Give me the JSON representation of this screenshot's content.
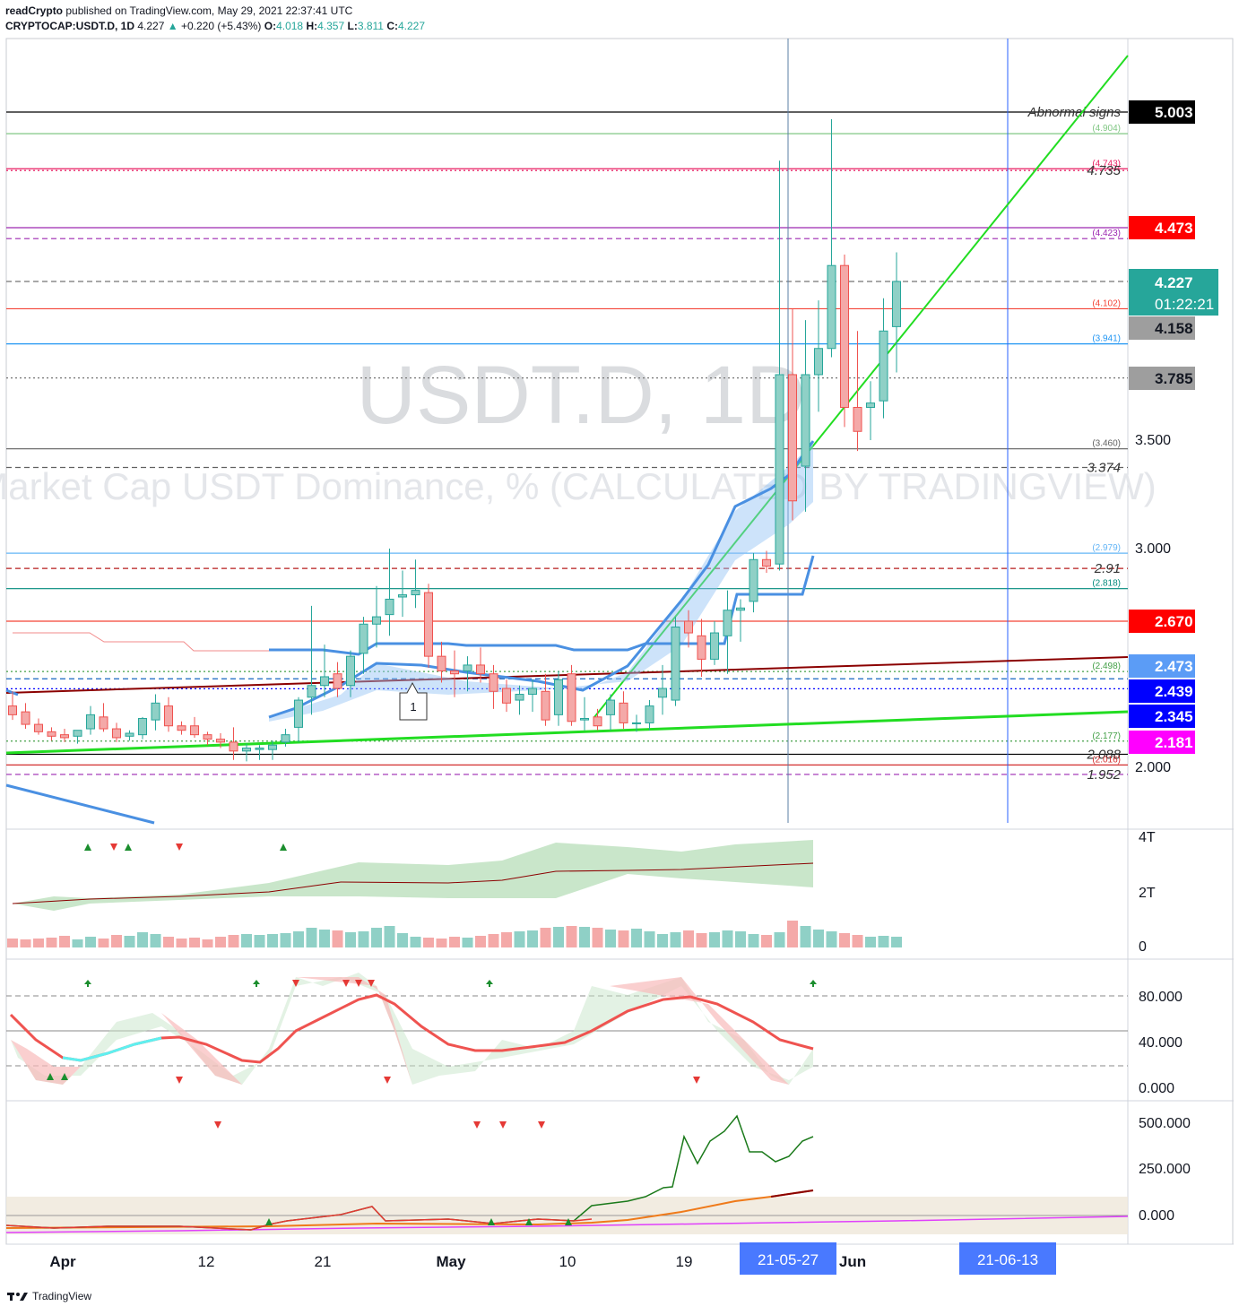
{
  "header": {
    "publisher": "readCrypto",
    "published_text": "published on TradingView.com, May 29, 2021 22:37:41 UTC",
    "symbol": "CRYPTOCAP:USDT.D, 1D",
    "last": "4.227",
    "change_arrow": "▲",
    "change": "+0.220 (+5.43%)",
    "o_label": "O:",
    "o": "4.018",
    "h_label": "H:",
    "h": "4.357",
    "l_label": "L:",
    "l": "3.811",
    "c_label": "C:",
    "c": "4.227"
  },
  "watermark": {
    "symbol": "USDT.D, 1D",
    "description": "Market Cap USDT Dominance, % (CALCULATED BY TRADINGVIEW)"
  },
  "footer": {
    "brand": "TradingView"
  },
  "colors": {
    "up": "#26a69a",
    "down": "#ef5350",
    "up_fill": "#8fd0c6",
    "down_fill": "#f4a9a8"
  },
  "chart_data": {
    "type": "candlestick",
    "x_axis": {
      "ticks": [
        "Apr",
        "12",
        "21",
        "May",
        "10",
        "19",
        "Jun"
      ],
      "cursor_dates": [
        "21-05-27",
        "21-06-13"
      ]
    },
    "price_axis": {
      "ticks": [
        "5.003",
        "4.473",
        "3.500",
        "3.000",
        "2.670",
        "2.000"
      ],
      "range": [
        1.77,
        5.35
      ],
      "labels": [
        {
          "text": "5.003",
          "bg": "#000000",
          "fg": "#ffffff"
        },
        {
          "text": "4.473",
          "bg": "#ff0000",
          "fg": "#ffffff"
        },
        {
          "text": "4.227",
          "sub": "01:22:21",
          "bg": "#26a69a",
          "fg": "#ffffff"
        },
        {
          "text": "4.158",
          "bg": "#9e9e9e",
          "fg": "#131722"
        },
        {
          "text": "3.785",
          "bg": "#9e9e9e",
          "fg": "#131722"
        },
        {
          "text": "2.670",
          "bg": "#ff0000",
          "fg": "#ffffff"
        },
        {
          "text": "2.473",
          "bg": "#5b9cf6",
          "fg": "#ffffff"
        },
        {
          "text": "2.439",
          "bg": "#0000ff",
          "fg": "#ffffff"
        },
        {
          "text": "2.345",
          "bg": "#0000ff",
          "fg": "#ffffff"
        },
        {
          "text": "2.181",
          "bg": "#ff00ff",
          "fg": "#ffffff"
        }
      ]
    },
    "levels": [
      {
        "value": 5.003,
        "label": "Abnormal signs",
        "color": "#000000",
        "style": "solid"
      },
      {
        "value": 4.904,
        "label": "(4.904)",
        "color": "#81c784",
        "style": "solid"
      },
      {
        "value": 4.743,
        "label": "(4.743)",
        "color": "#e91e63",
        "style": "solid"
      },
      {
        "value": 4.735,
        "label": "4.735",
        "color": "#e91e63",
        "style": "dotted"
      },
      {
        "value": 4.473,
        "label": "",
        "color": "#9c27b0",
        "style": "solid"
      },
      {
        "value": 4.423,
        "label": "(4.423)",
        "color": "#9c27b0",
        "style": "dashed"
      },
      {
        "value": 4.227,
        "label": "",
        "color": "#757575",
        "style": "dashed"
      },
      {
        "value": 4.102,
        "label": "(4.102)",
        "color": "#f44336",
        "style": "solid"
      },
      {
        "value": 3.941,
        "label": "(3.941)",
        "color": "#2196f3",
        "style": "solid"
      },
      {
        "value": 3.785,
        "label": "",
        "color": "#757575",
        "style": "dotted"
      },
      {
        "value": 3.46,
        "label": "(3.460)",
        "color": "#616161",
        "style": "solid"
      },
      {
        "value": 3.374,
        "label": "3.374",
        "color": "#616161",
        "style": "dashed"
      },
      {
        "value": 2.979,
        "label": "(2.979)",
        "color": "#64b5f6",
        "style": "solid"
      },
      {
        "value": 2.91,
        "label": "2.91",
        "color": "#b71c1c",
        "style": "dashed"
      },
      {
        "value": 2.818,
        "label": "(2.818)",
        "color": "#00897b",
        "style": "solid"
      },
      {
        "value": 2.67,
        "label": "",
        "color": "#f44336",
        "style": "solid"
      },
      {
        "value": 2.498,
        "label": "(2.498)",
        "color": "#43a047",
        "style": "dotted"
      },
      {
        "value": 2.473,
        "label": "",
        "color": "#1565c0",
        "style": "dashed"
      },
      {
        "value": 2.439,
        "label": "",
        "color": "#0000ff",
        "style": "dotted"
      },
      {
        "value": 2.177,
        "label": "(2.177)",
        "color": "#43a047",
        "style": "dotted"
      },
      {
        "value": 2.088,
        "label": "2.088",
        "color": "#000000",
        "style": "solid"
      },
      {
        "value": 2.016,
        "label": "(2.016)",
        "color": "#d32f2f",
        "style": "solid"
      },
      {
        "value": 1.952,
        "label": "1.952",
        "color": "#9c27b0",
        "style": "dashed"
      }
    ],
    "candles": [
      {
        "o": 2.38,
        "h": 2.43,
        "l": 2.32,
        "c": 2.35
      },
      {
        "o": 2.36,
        "h": 2.39,
        "l": 2.26,
        "c": 2.29
      },
      {
        "o": 2.29,
        "h": 2.33,
        "l": 2.22,
        "c": 2.24
      },
      {
        "o": 2.24,
        "h": 2.27,
        "l": 2.18,
        "c": 2.21
      },
      {
        "o": 2.22,
        "h": 2.26,
        "l": 2.17,
        "c": 2.2
      },
      {
        "o": 2.21,
        "h": 2.25,
        "l": 2.16,
        "c": 2.25
      },
      {
        "o": 2.26,
        "h": 2.38,
        "l": 2.22,
        "c": 2.35
      },
      {
        "o": 2.34,
        "h": 2.39,
        "l": 2.24,
        "c": 2.26
      },
      {
        "o": 2.26,
        "h": 2.3,
        "l": 2.17,
        "c": 2.2
      },
      {
        "o": 2.21,
        "h": 2.25,
        "l": 2.18,
        "c": 2.23
      },
      {
        "o": 2.22,
        "h": 2.34,
        "l": 2.19,
        "c": 2.33
      },
      {
        "o": 2.32,
        "h": 2.42,
        "l": 2.25,
        "c": 2.39
      },
      {
        "o": 2.38,
        "h": 2.41,
        "l": 2.24,
        "c": 2.28
      },
      {
        "o": 2.28,
        "h": 2.31,
        "l": 2.22,
        "c": 2.25
      },
      {
        "o": 2.28,
        "h": 2.34,
        "l": 2.2,
        "c": 2.22
      },
      {
        "o": 2.22,
        "h": 2.24,
        "l": 2.15,
        "c": 2.19
      },
      {
        "o": 2.19,
        "h": 2.23,
        "l": 2.13,
        "c": 2.17
      },
      {
        "o": 2.17,
        "h": 2.27,
        "l": 2.05,
        "c": 2.11
      },
      {
        "o": 2.11,
        "h": 2.16,
        "l": 2.04,
        "c": 2.13
      },
      {
        "o": 2.12,
        "h": 2.15,
        "l": 2.05,
        "c": 2.13
      },
      {
        "o": 2.12,
        "h": 2.18,
        "l": 2.05,
        "c": 2.15
      },
      {
        "o": 2.17,
        "h": 2.26,
        "l": 2.14,
        "c": 2.22
      },
      {
        "o": 2.27,
        "h": 2.41,
        "l": 2.17,
        "c": 2.4
      },
      {
        "o": 2.41,
        "h": 2.74,
        "l": 2.35,
        "c": 2.45
      },
      {
        "o": 2.45,
        "h": 2.59,
        "l": 2.41,
        "c": 2.48
      },
      {
        "o": 2.49,
        "h": 2.53,
        "l": 2.41,
        "c": 2.44
      },
      {
        "o": 2.45,
        "h": 2.57,
        "l": 2.41,
        "c": 2.55
      },
      {
        "o": 2.56,
        "h": 2.69,
        "l": 2.49,
        "c": 2.66
      },
      {
        "o": 2.66,
        "h": 2.83,
        "l": 2.58,
        "c": 2.69
      },
      {
        "o": 2.7,
        "h": 3.0,
        "l": 2.62,
        "c": 2.77
      },
      {
        "o": 2.78,
        "h": 2.9,
        "l": 2.69,
        "c": 2.79
      },
      {
        "o": 2.79,
        "h": 2.95,
        "l": 2.73,
        "c": 2.81
      },
      {
        "o": 2.8,
        "h": 2.84,
        "l": 2.51,
        "c": 2.55
      },
      {
        "o": 2.55,
        "h": 2.6,
        "l": 2.46,
        "c": 2.5
      },
      {
        "o": 2.5,
        "h": 2.57,
        "l": 2.41,
        "c": 2.49
      },
      {
        "o": 2.5,
        "h": 2.55,
        "l": 2.43,
        "c": 2.52
      },
      {
        "o": 2.52,
        "h": 2.58,
        "l": 2.46,
        "c": 2.49
      },
      {
        "o": 2.49,
        "h": 2.52,
        "l": 2.37,
        "c": 2.43
      },
      {
        "o": 2.44,
        "h": 2.47,
        "l": 2.36,
        "c": 2.39
      },
      {
        "o": 2.4,
        "h": 2.45,
        "l": 2.35,
        "c": 2.42
      },
      {
        "o": 2.42,
        "h": 2.47,
        "l": 2.36,
        "c": 2.44
      },
      {
        "o": 2.43,
        "h": 2.49,
        "l": 2.28,
        "c": 2.32
      },
      {
        "o": 2.35,
        "h": 2.5,
        "l": 2.28,
        "c": 2.47
      },
      {
        "o": 2.49,
        "h": 2.52,
        "l": 2.28,
        "c": 2.31
      },
      {
        "o": 2.32,
        "h": 2.41,
        "l": 2.25,
        "c": 2.33
      },
      {
        "o": 2.34,
        "h": 2.37,
        "l": 2.25,
        "c": 2.28
      },
      {
        "o": 2.35,
        "h": 2.42,
        "l": 2.25,
        "c": 2.4
      },
      {
        "o": 2.39,
        "h": 2.43,
        "l": 2.26,
        "c": 2.3
      },
      {
        "o": 2.3,
        "h": 2.35,
        "l": 2.24,
        "c": 2.3
      },
      {
        "o": 2.3,
        "h": 2.4,
        "l": 2.25,
        "c": 2.38
      },
      {
        "o": 2.41,
        "h": 2.52,
        "l": 2.35,
        "c": 2.44
      },
      {
        "o": 2.4,
        "h": 2.69,
        "l": 2.38,
        "c": 2.65
      },
      {
        "o": 2.67,
        "h": 2.72,
        "l": 2.58,
        "c": 2.63
      },
      {
        "o": 2.62,
        "h": 2.68,
        "l": 2.48,
        "c": 2.54
      },
      {
        "o": 2.54,
        "h": 2.67,
        "l": 2.52,
        "c": 2.63
      },
      {
        "o": 2.62,
        "h": 2.81,
        "l": 2.49,
        "c": 2.72
      },
      {
        "o": 2.72,
        "h": 2.77,
        "l": 2.6,
        "c": 2.73
      },
      {
        "o": 2.76,
        "h": 2.98,
        "l": 2.71,
        "c": 2.95
      },
      {
        "o": 2.95,
        "h": 2.99,
        "l": 2.89,
        "c": 2.92
      },
      {
        "o": 2.93,
        "h": 4.78,
        "l": 2.9,
        "c": 3.8
      },
      {
        "o": 3.8,
        "h": 4.1,
        "l": 3.13,
        "c": 3.22
      },
      {
        "o": 3.38,
        "h": 4.05,
        "l": 3.17,
        "c": 3.8
      },
      {
        "o": 3.8,
        "h": 4.14,
        "l": 3.63,
        "c": 3.92
      },
      {
        "o": 3.92,
        "h": 4.97,
        "l": 3.88,
        "c": 4.3
      },
      {
        "o": 4.3,
        "h": 4.35,
        "l": 3.56,
        "c": 3.65
      },
      {
        "o": 3.65,
        "h": 4.0,
        "l": 3.45,
        "c": 3.54
      },
      {
        "o": 3.65,
        "h": 3.77,
        "l": 3.5,
        "c": 3.67
      },
      {
        "o": 3.68,
        "h": 4.15,
        "l": 3.6,
        "c": 4.0
      },
      {
        "o": 4.02,
        "h": 4.36,
        "l": 3.81,
        "c": 4.227
      }
    ],
    "volume_axis": {
      "ticks": [
        "4T",
        "2T",
        "0"
      ]
    },
    "oscillator_axis": {
      "ticks": [
        "80.000",
        "40.000",
        "0.000"
      ]
    },
    "lower_axis": {
      "ticks": [
        "500.000",
        "250.000",
        "0.000"
      ]
    },
    "annotation": "1"
  }
}
